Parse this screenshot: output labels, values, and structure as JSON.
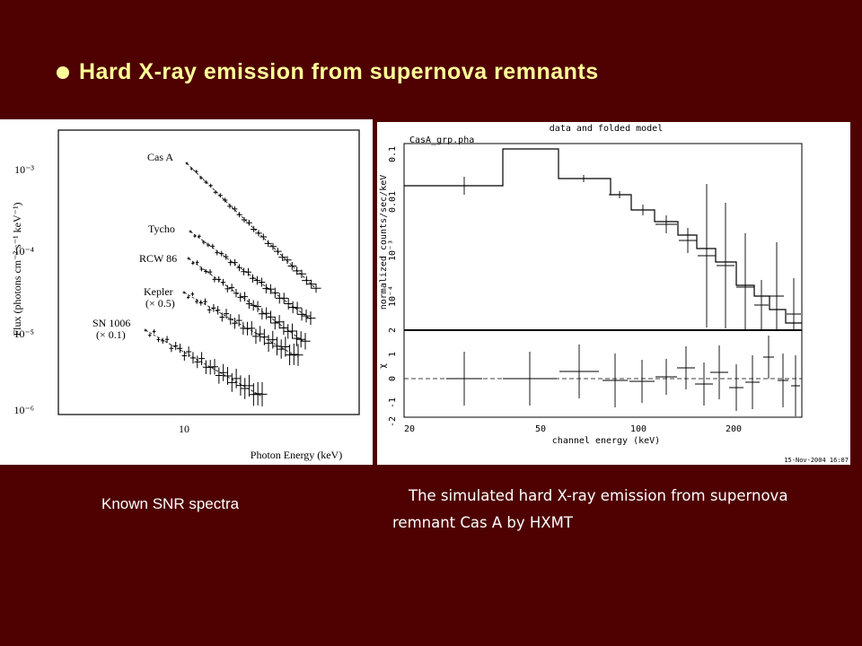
{
  "title": "Hard X-ray emission from supernova remnants",
  "left_figure": {
    "y_axis_label": "Flux (photons cm⁻² s⁻¹ keV⁻¹)",
    "y_ticks": [
      "10⁻³",
      "10⁻⁴",
      "10⁻⁵",
      "10⁻⁶"
    ],
    "x_ticks": [
      10
    ],
    "x_axis_label": "Photon Energy (keV)",
    "series_labels": [
      "Cas A",
      "Tycho",
      "RCW 86",
      "Kepler",
      "(× 0.5)",
      "SN 1006",
      "(× 0.1)"
    ]
  },
  "left_caption": "Known SNR spectra",
  "right_figure": {
    "title": "data and folded model",
    "file_label": "CasA_grp.pha",
    "y_axis_label": "normalized counts/sec/keV",
    "y_ticks": [
      0.1,
      0.01,
      "10⁻³",
      "10⁻⁴"
    ],
    "residual_axis_label": "χ",
    "residual_ticks": [
      2,
      1,
      0,
      -1,
      -2
    ],
    "x_ticks": [
      20,
      50,
      100,
      200
    ],
    "x_axis_label": "channel energy (keV)",
    "footer": "15-Nov-2004 16:07"
  },
  "right_caption": "The simulated hard X-ray emission from supernova remnant Cas A by HXMT"
}
